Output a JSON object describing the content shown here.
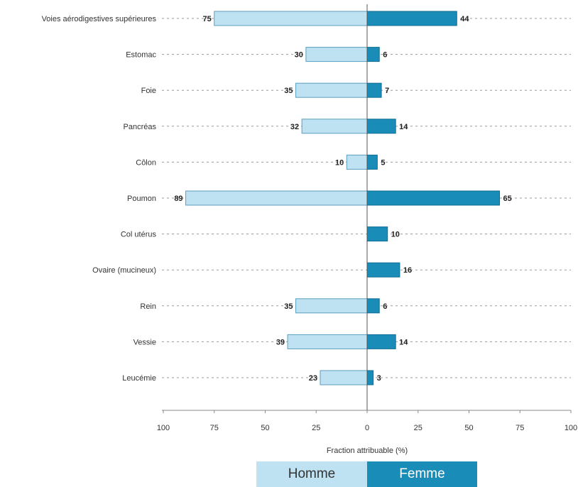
{
  "chart_data": {
    "type": "bar",
    "categories": [
      "Voies aérodigestives supérieures",
      "Estomac",
      "Foie",
      "Pancréas",
      "Côlon",
      "Poumon",
      "Col utérus",
      "Ovaire (mucineux)",
      "Rein",
      "Vessie",
      "Leucémie"
    ],
    "series": [
      {
        "name": "Homme",
        "values": [
          75,
          30,
          35,
          32,
          10,
          89,
          null,
          null,
          35,
          39,
          23
        ],
        "color": "#bfe2f2",
        "stroke": "#5b9fbf"
      },
      {
        "name": "Femme",
        "values": [
          44,
          6,
          7,
          14,
          5,
          65,
          10,
          16,
          6,
          14,
          3
        ],
        "color": "#1a8cb8",
        "stroke": "#0f6e94"
      }
    ],
    "xlabel": "Fraction attribuable (%)",
    "xticks": [
      "100",
      "75",
      "50",
      "25",
      "0",
      "25",
      "50",
      "75",
      "100"
    ],
    "xlim": [
      -100,
      100
    ],
    "grid": "dotted",
    "legend": "bottom",
    "colors": {
      "label_text": "#222222",
      "axis": "#888888",
      "legend_text_femme": "#ffffff",
      "legend_text_homme": "#333333"
    }
  }
}
